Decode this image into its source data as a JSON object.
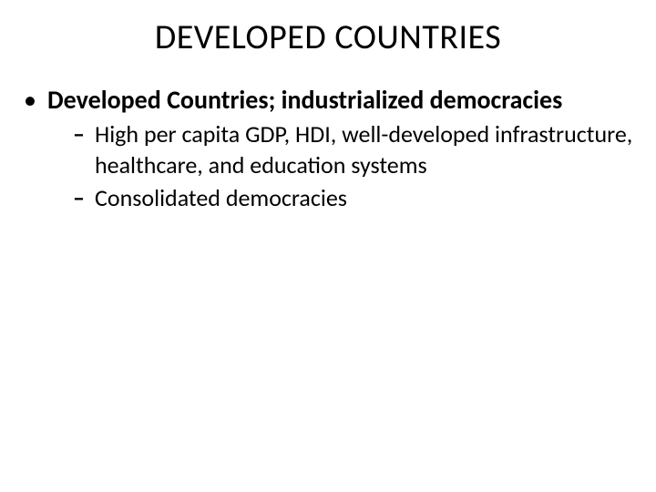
{
  "slide": {
    "title": "DEVELOPED COUNTRIES",
    "bullets": {
      "level1": {
        "marker": "•",
        "text": "Developed Countries; industrialized democracies"
      },
      "level2a": {
        "marker": "–",
        "text": "High per capita GDP, HDI, well-developed infrastructure, healthcare, and education systems"
      },
      "level2b": {
        "marker": "–",
        "text": "Consolidated democracies"
      }
    }
  },
  "colors": {
    "background": "#ffffff",
    "text": "#000000"
  },
  "typography": {
    "title_fontsize": 38,
    "body_fontsize": 28,
    "sub_fontsize": 26,
    "font_family": "Calibri"
  }
}
